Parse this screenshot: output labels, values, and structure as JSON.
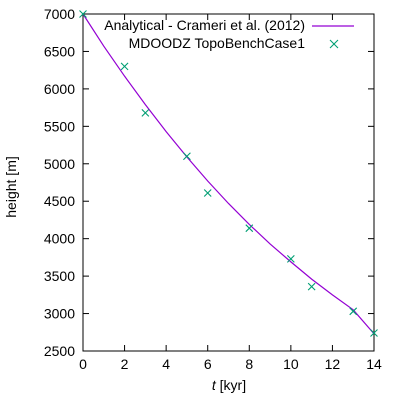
{
  "chart_data": {
    "type": "line",
    "xlabel_italic": "t",
    "xlabel_rest": " [kyr]",
    "ylabel": "height [m]",
    "xlim": [
      0,
      14
    ],
    "ylim": [
      2500,
      7000
    ],
    "x_ticks": [
      0,
      2,
      4,
      6,
      8,
      10,
      12,
      14
    ],
    "y_ticks": [
      2500,
      3000,
      3500,
      4000,
      4500,
      5000,
      5500,
      6000,
      6500,
      7000
    ],
    "grid": false,
    "legend_position": "top-right",
    "series": [
      {
        "name": "Analytical - Crameri et al. (2012)",
        "kind": "line",
        "color": "#9400d3",
        "x": [
          0,
          1,
          2,
          3,
          4,
          5,
          6,
          7,
          8,
          9,
          10,
          11,
          12,
          13,
          14
        ],
        "y": [
          7000,
          6570,
          6170,
          5790,
          5430,
          5090,
          4770,
          4470,
          4190,
          3930,
          3690,
          3460,
          3250,
          3050,
          2730
        ]
      },
      {
        "name": "MDOODZ TopoBenchCase1",
        "kind": "points",
        "marker": "x",
        "color": "#009e73",
        "x": [
          0,
          2,
          3,
          5,
          6,
          8,
          10,
          11,
          13,
          14
        ],
        "y": [
          7000,
          6300,
          5680,
          5100,
          4610,
          4140,
          3730,
          3360,
          3030,
          2740
        ]
      }
    ]
  }
}
